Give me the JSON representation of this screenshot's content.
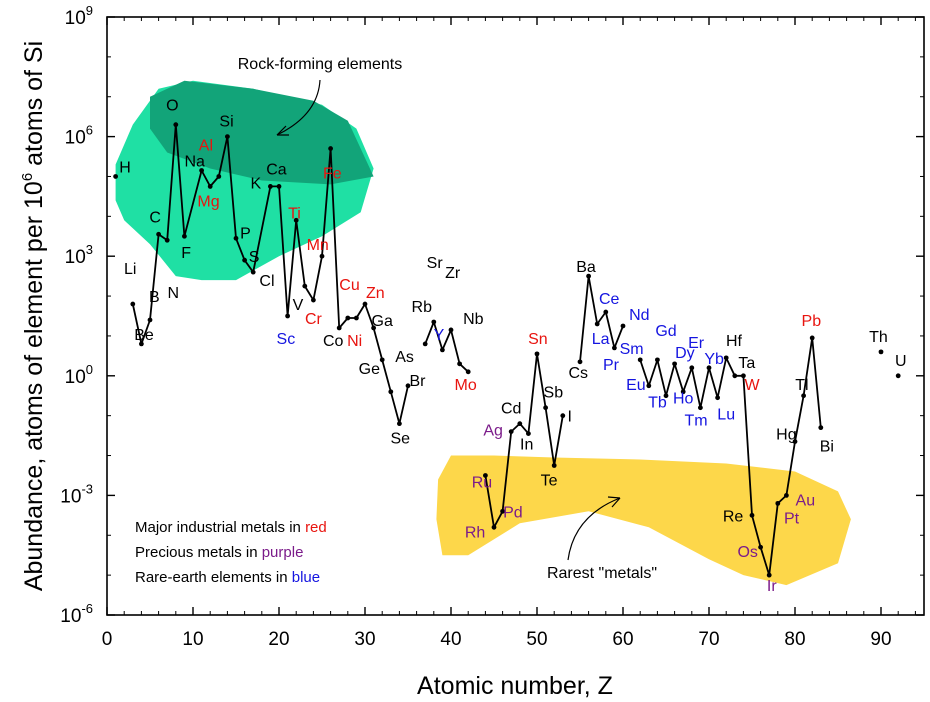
{
  "chart_data": {
    "type": "line",
    "title": "",
    "xlabel": "Atomic number, Z",
    "ylabel_prefix": "Abundance, atoms of element per 10",
    "ylabel_sup": "6",
    "ylabel_suffix": " atoms of Si",
    "xlim": [
      0,
      95
    ],
    "ylim_log10": [
      -6,
      9
    ],
    "x_ticks": [
      0,
      10,
      20,
      30,
      40,
      50,
      60,
      70,
      80,
      90
    ],
    "y_ticks": [
      {
        "exp": -6,
        "base": "10",
        "sup": "-6"
      },
      {
        "exp": -3,
        "base": "10",
        "sup": "-3"
      },
      {
        "exp": 0,
        "base": "10",
        "sup": "0"
      },
      {
        "exp": 3,
        "base": "10",
        "sup": "3"
      },
      {
        "exp": 6,
        "base": "10",
        "sup": "6"
      },
      {
        "exp": 9,
        "base": "10",
        "sup": "9"
      }
    ],
    "colors": {
      "black": "#000000",
      "red": "#e8140f",
      "purple": "#7b1b8a",
      "blue": "#1515e0",
      "rock_region_light": "#1fe0a4",
      "rock_region_dark": "#12a479",
      "rare_region": "#fdd74a"
    },
    "series": [
      {
        "points": [
          {
            "z": 3,
            "log": 1.8,
            "sym": "Li",
            "c": "black",
            "lx": 2.7,
            "ly": 2.7
          },
          {
            "z": 4,
            "log": 0.8,
            "sym": "Be",
            "c": "black",
            "lx": 4.3,
            "ly": 1.05
          },
          {
            "z": 5,
            "log": 1.4,
            "sym": "B",
            "c": "black",
            "lx": 5.5,
            "ly": 2.0
          },
          {
            "z": 6,
            "log": 3.55,
            "sym": "C",
            "c": "black",
            "lx": 5.6,
            "ly": 4.0
          },
          {
            "z": 7,
            "log": 3.4,
            "sym": "N",
            "c": "black",
            "lx": 7.7,
            "ly": 2.1
          },
          {
            "z": 8,
            "log": 6.3,
            "sym": "O",
            "c": "black",
            "lx": 7.6,
            "ly": 6.8
          },
          {
            "z": 9,
            "log": 3.5,
            "sym": "F",
            "c": "black",
            "lx": 9.2,
            "ly": 3.1
          },
          {
            "z": 11,
            "log": 5.15,
            "sym": "Na",
            "c": "black",
            "lx": 10.2,
            "ly": 5.4
          },
          {
            "z": 12,
            "log": 4.75,
            "sym": "Mg",
            "c": "red",
            "lx": 11.8,
            "ly": 4.4
          },
          {
            "z": 13,
            "log": 5.0,
            "sym": "Al",
            "c": "red",
            "lx": 11.5,
            "ly": 5.8
          },
          {
            "z": 14,
            "log": 6.0,
            "sym": "Si",
            "c": "black",
            "lx": 13.9,
            "ly": 6.4
          },
          {
            "z": 15,
            "log": 3.45,
            "sym": "P",
            "c": "black",
            "lx": 16.1,
            "ly": 3.6
          },
          {
            "z": 16,
            "log": 2.9,
            "sym": "S",
            "c": "black",
            "lx": 17.1,
            "ly": 3.0
          },
          {
            "z": 17,
            "log": 2.6,
            "sym": "Cl",
            "c": "black",
            "lx": 18.6,
            "ly": 2.4
          },
          {
            "z": 19,
            "log": 4.75,
            "sym": "K",
            "c": "black",
            "lx": 17.3,
            "ly": 4.85
          },
          {
            "z": 20,
            "log": 4.75,
            "sym": "Ca",
            "c": "black",
            "lx": 19.7,
            "ly": 5.2
          },
          {
            "z": 21,
            "log": 1.5,
            "sym": "Sc",
            "c": "blue",
            "lx": 20.8,
            "ly": 0.95
          },
          {
            "z": 22,
            "log": 3.9,
            "sym": "Ti",
            "c": "red",
            "lx": 21.8,
            "ly": 4.1
          },
          {
            "z": 23,
            "log": 2.25,
            "sym": "V",
            "c": "black",
            "lx": 22.2,
            "ly": 1.8
          },
          {
            "z": 24,
            "log": 1.9,
            "sym": "Cr",
            "c": "red",
            "lx": 24.0,
            "ly": 1.45
          },
          {
            "z": 25,
            "log": 3.0,
            "sym": "Mn",
            "c": "red",
            "lx": 24.5,
            "ly": 3.3
          },
          {
            "z": 26,
            "log": 5.7,
            "sym": "Fe",
            "c": "red",
            "lx": 26.2,
            "ly": 5.1
          },
          {
            "z": 27,
            "log": 1.2,
            "sym": "Co",
            "c": "black",
            "lx": 26.3,
            "ly": 0.9
          },
          {
            "z": 28,
            "log": 1.45,
            "sym": "Ni",
            "c": "red",
            "lx": 28.8,
            "ly": 0.9
          },
          {
            "z": 29,
            "log": 1.45,
            "sym": "Cu",
            "c": "red",
            "lx": 28.2,
            "ly": 2.3
          },
          {
            "z": 30,
            "log": 1.8,
            "sym": "Zn",
            "c": "red",
            "lx": 31.2,
            "ly": 2.1
          },
          {
            "z": 31,
            "log": 1.2,
            "sym": "Ga",
            "c": "black",
            "lx": 32.0,
            "ly": 1.4
          },
          {
            "z": 32,
            "log": 0.4,
            "sym": "Ge",
            "c": "black",
            "lx": 30.5,
            "ly": 0.2
          },
          {
            "z": 33,
            "log": -0.4,
            "sym": "As",
            "c": "black",
            "lx": 34.6,
            "ly": 0.5
          },
          {
            "z": 34,
            "log": -1.2,
            "sym": "Se",
            "c": "black",
            "lx": 34.1,
            "ly": -1.55
          },
          {
            "z": 35,
            "log": -0.25,
            "sym": "Br",
            "c": "black",
            "lx": 36.1,
            "ly": -0.1
          },
          {
            "z": 37,
            "log": 0.8,
            "sym": "Rb",
            "c": "black",
            "lx": 36.6,
            "ly": 1.75,
            "gap": true
          },
          {
            "z": 38,
            "log": 1.35,
            "sym": "Sr",
            "c": "black",
            "lx": 38.1,
            "ly": 2.85
          },
          {
            "z": 39,
            "log": 0.65,
            "sym": "Y",
            "c": "blue",
            "lx": 38.6,
            "ly": 1.05
          },
          {
            "z": 40,
            "log": 1.15,
            "sym": "Zr",
            "c": "black",
            "lx": 40.2,
            "ly": 2.6
          },
          {
            "z": 41,
            "log": 0.3,
            "sym": "Nb",
            "c": "black",
            "lx": 42.6,
            "ly": 1.45
          },
          {
            "z": 42,
            "log": 0.1,
            "sym": "Mo",
            "c": "red",
            "lx": 41.7,
            "ly": -0.2
          },
          {
            "z": 44,
            "log": -2.5,
            "sym": "Ru",
            "c": "purple",
            "lx": 43.6,
            "ly": -2.65,
            "gap": true
          },
          {
            "z": 45,
            "log": -3.8,
            "sym": "Rh",
            "c": "purple",
            "lx": 42.8,
            "ly": -3.9
          },
          {
            "z": 46,
            "log": -3.4,
            "sym": "Pd",
            "c": "purple",
            "lx": 47.2,
            "ly": -3.4
          },
          {
            "z": 47,
            "log": -1.4,
            "sym": "Ag",
            "c": "purple",
            "lx": 44.9,
            "ly": -1.35
          },
          {
            "z": 48,
            "log": -1.2,
            "sym": "Cd",
            "c": "black",
            "lx": 47.0,
            "ly": -0.8
          },
          {
            "z": 49,
            "log": -1.45,
            "sym": "In",
            "c": "black",
            "lx": 48.8,
            "ly": -1.7
          },
          {
            "z": 50,
            "log": 0.55,
            "sym": "Sn",
            "c": "red",
            "lx": 50.1,
            "ly": 0.95
          },
          {
            "z": 51,
            "log": -0.8,
            "sym": "Sb",
            "c": "black",
            "lx": 51.9,
            "ly": -0.4
          },
          {
            "z": 52,
            "log": -2.25,
            "sym": "Te",
            "c": "black",
            "lx": 51.4,
            "ly": -2.6
          },
          {
            "z": 53,
            "log": -1.0,
            "sym": "I",
            "c": "black",
            "lx": 53.8,
            "ly": -1.0
          },
          {
            "z": 55,
            "log": 0.35,
            "sym": "Cs",
            "c": "black",
            "lx": 54.8,
            "ly": 0.1,
            "gap": true
          },
          {
            "z": 56,
            "log": 2.5,
            "sym": "Ba",
            "c": "black",
            "lx": 55.7,
            "ly": 2.75
          },
          {
            "z": 57,
            "log": 1.3,
            "sym": "La",
            "c": "blue",
            "lx": 57.4,
            "ly": 0.95
          },
          {
            "z": 58,
            "log": 1.6,
            "sym": "Ce",
            "c": "blue",
            "lx": 58.4,
            "ly": 1.95
          },
          {
            "z": 59,
            "log": 0.7,
            "sym": "Pr",
            "c": "blue",
            "lx": 58.6,
            "ly": 0.3
          },
          {
            "z": 60,
            "log": 1.25,
            "sym": "Nd",
            "c": "blue",
            "lx": 61.9,
            "ly": 1.55
          },
          {
            "z": 62,
            "log": 0.4,
            "sym": "Sm",
            "c": "blue",
            "lx": 61.0,
            "ly": 0.7,
            "gap": true
          },
          {
            "z": 63,
            "log": -0.25,
            "sym": "Eu",
            "c": "blue",
            "lx": 61.5,
            "ly": -0.2
          },
          {
            "z": 64,
            "log": 0.4,
            "sym": "Gd",
            "c": "blue",
            "lx": 65.0,
            "ly": 1.15
          },
          {
            "z": 65,
            "log": -0.5,
            "sym": "Tb",
            "c": "blue",
            "lx": 64.0,
            "ly": -0.65
          },
          {
            "z": 66,
            "log": 0.3,
            "sym": "Dy",
            "c": "blue",
            "lx": 67.2,
            "ly": 0.6
          },
          {
            "z": 67,
            "log": -0.4,
            "sym": "Ho",
            "c": "blue",
            "lx": 67.0,
            "ly": -0.55
          },
          {
            "z": 68,
            "log": 0.2,
            "sym": "Er",
            "c": "blue",
            "lx": 68.5,
            "ly": 0.85
          },
          {
            "z": 69,
            "log": -0.8,
            "sym": "Tm",
            "c": "blue",
            "lx": 68.5,
            "ly": -1.1
          },
          {
            "z": 70,
            "log": 0.2,
            "sym": "Yb",
            "c": "blue",
            "lx": 70.6,
            "ly": 0.45
          },
          {
            "z": 71,
            "log": -0.55,
            "sym": "Lu",
            "c": "blue",
            "lx": 72.0,
            "ly": -0.95
          },
          {
            "z": 72,
            "log": 0.45,
            "sym": "Hf",
            "c": "black",
            "lx": 72.9,
            "ly": 0.9
          },
          {
            "z": 73,
            "log": 0.0,
            "sym": "Ta",
            "c": "black",
            "lx": 74.4,
            "ly": 0.35
          },
          {
            "z": 74,
            "log": 0.0,
            "sym": "W",
            "c": "red",
            "lx": 75.0,
            "ly": -0.2
          },
          {
            "z": 75,
            "log": -3.5,
            "sym": "Re",
            "c": "black",
            "lx": 72.8,
            "ly": -3.5
          },
          {
            "z": 76,
            "log": -4.3,
            "sym": "Os",
            "c": "purple",
            "lx": 74.5,
            "ly": -4.4
          },
          {
            "z": 77,
            "log": -5.0,
            "sym": "Ir",
            "c": "purple",
            "lx": 77.3,
            "ly": -5.25
          },
          {
            "z": 78,
            "log": -3.2,
            "sym": "Pt",
            "c": "purple",
            "lx": 79.6,
            "ly": -3.55
          },
          {
            "z": 79,
            "log": -3.0,
            "sym": "Au",
            "c": "purple",
            "lx": 81.2,
            "ly": -3.1
          },
          {
            "z": 80,
            "log": -1.65,
            "sym": "Hg",
            "c": "black",
            "lx": 79.0,
            "ly": -1.45
          },
          {
            "z": 81,
            "log": -0.5,
            "sym": "Tl",
            "c": "black",
            "lx": 80.8,
            "ly": -0.2
          },
          {
            "z": 82,
            "log": 0.95,
            "sym": "Pb",
            "c": "red",
            "lx": 81.9,
            "ly": 1.4
          },
          {
            "z": 83,
            "log": -1.3,
            "sym": "Bi",
            "c": "black",
            "lx": 83.7,
            "ly": -1.75
          }
        ]
      },
      {
        "points": [
          {
            "z": 1,
            "log": 5.0,
            "sym": "H",
            "c": "black",
            "lx": 2.1,
            "ly": 5.25
          },
          {
            "z": 90,
            "log": 0.6,
            "sym": "Th",
            "c": "black",
            "lx": 89.7,
            "ly": 1.0
          },
          {
            "z": 92,
            "log": 0.0,
            "sym": "U",
            "c": "black",
            "lx": 92.3,
            "ly": 0.4
          }
        ],
        "isolated": true
      }
    ],
    "annotations": {
      "rock": "Rock-forming elements",
      "rare": "Rarest \"metals\""
    },
    "legend": [
      {
        "prefix": "Major industrial metals in ",
        "word": "red",
        "c": "red"
      },
      {
        "prefix": "Precious metals in ",
        "word": "purple",
        "c": "purple"
      },
      {
        "prefix": "Rare-earth elements in ",
        "word": "blue",
        "c": "blue"
      }
    ],
    "grid": false
  }
}
